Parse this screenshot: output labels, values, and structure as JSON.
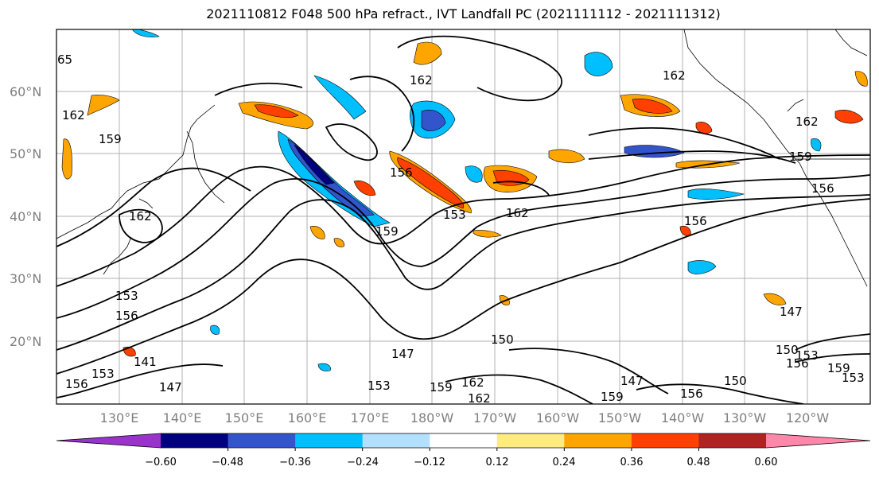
{
  "title": "2021110812 F048 500 hPa refract., IVT Landfall PC (2021111112 - 2021111312)",
  "lat_labels": [
    "60°N",
    "50°N",
    "40°N",
    "30°N",
    "20°N"
  ],
  "lon_labels": [
    "130°E",
    "140°E",
    "150°E",
    "160°E",
    "170°E",
    "180°W",
    "170°W",
    "160°W",
    "150°W",
    "140°W",
    "130°W",
    "120°W"
  ],
  "contour_labels": [
    "65",
    "162",
    "159",
    "162",
    "162",
    "156",
    "153",
    "162",
    "159",
    "162",
    "162",
    "159",
    "156",
    "156",
    "153",
    "156",
    "153",
    "141",
    "147",
    "153",
    "147",
    "159",
    "150",
    "162",
    "162",
    "159",
    "147",
    "156",
    "150",
    "150",
    "153",
    "156",
    "147",
    "156",
    "159",
    "153"
  ],
  "colorbar": {
    "tick_labels": [
      "−0.60",
      "−0.48",
      "−0.36",
      "−0.24",
      "−0.12",
      "0.12",
      "0.24",
      "0.36",
      "0.48",
      "0.60"
    ],
    "colors": [
      "#9933cc",
      "#000080",
      "#3355cc",
      "#00bfff",
      "#b3e0ff",
      "#ffffff",
      "#ffeb80",
      "#ffa500",
      "#ff4000",
      "#b22222",
      "#ff88aa"
    ]
  }
}
